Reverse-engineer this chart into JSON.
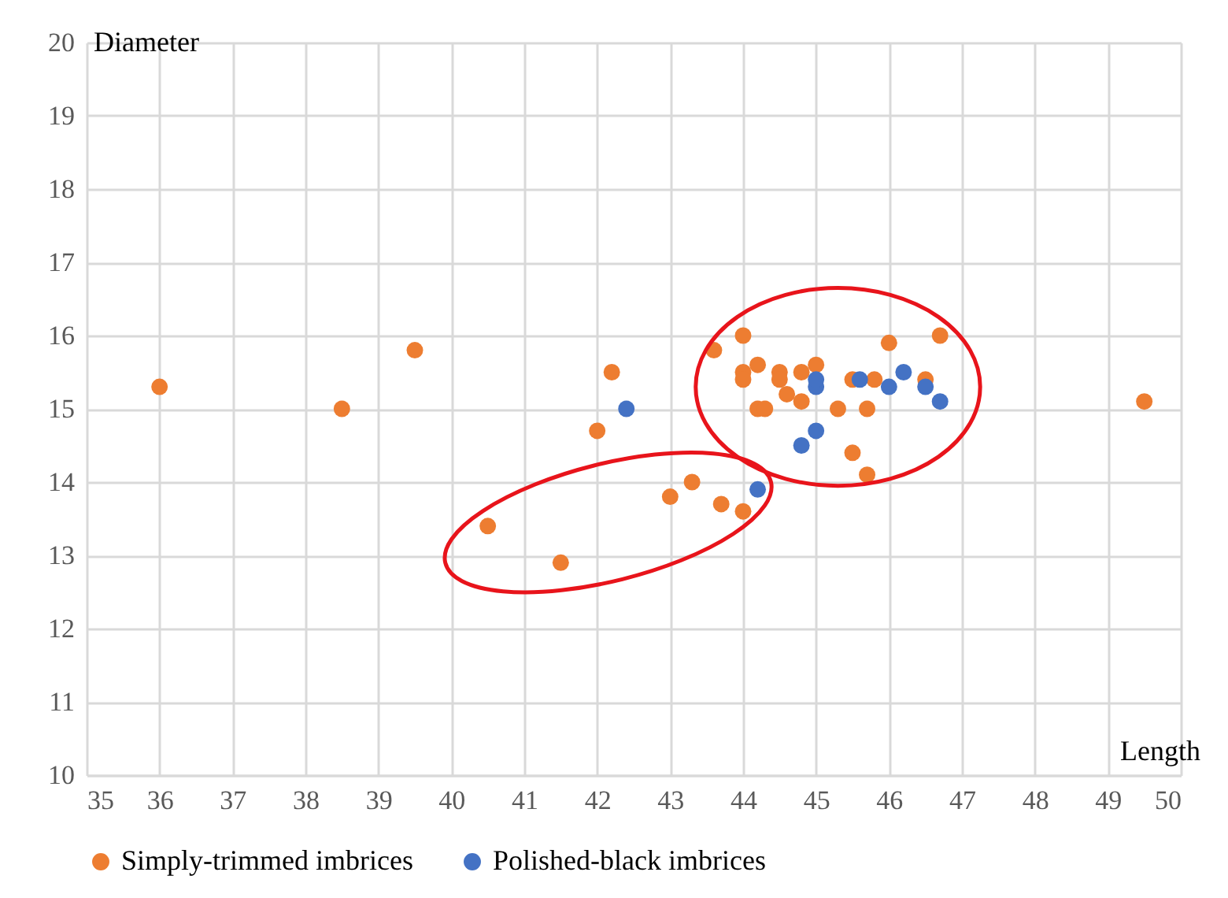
{
  "chart_data": {
    "type": "scatter",
    "xlabel": "Length",
    "ylabel": "Diameter",
    "xlim": [
      35,
      50
    ],
    "xticks": [
      35,
      36,
      37,
      38,
      39,
      40,
      41,
      42,
      43,
      44,
      45,
      46,
      47,
      48,
      49,
      50
    ],
    "ylim": [
      10,
      20
    ],
    "yticks": [
      10,
      11,
      12,
      13,
      14,
      15,
      16,
      17,
      18,
      19,
      20
    ],
    "grid": true,
    "legend": "bottom",
    "marker": "circle",
    "series": [
      {
        "name": "Simply-trimmed imbrices",
        "color": "#ed7d31",
        "x": [
          36,
          38.5,
          39.5,
          40.5,
          41.5,
          42,
          42.2,
          43,
          43.3,
          43.7,
          43.6,
          44,
          44,
          44,
          44,
          44.2,
          44.3,
          44.2,
          44.5,
          44.5,
          44.6,
          44.8,
          44.8,
          45,
          45.3,
          45.5,
          45.5,
          45.7,
          45.7,
          45.8,
          46,
          46.5,
          46.7,
          49.5
        ],
        "values": [
          15.3,
          15.0,
          15.8,
          13.4,
          12.9,
          14.7,
          15.5,
          13.8,
          14.0,
          13.7,
          15.8,
          13.6,
          16.0,
          15.5,
          15.4,
          15.0,
          15.0,
          15.6,
          15.5,
          15.4,
          15.2,
          15.1,
          15.5,
          15.6,
          15.0,
          15.4,
          14.4,
          15.0,
          14.1,
          15.4,
          15.9,
          15.4,
          16.0,
          15.1
        ]
      },
      {
        "name": "Polished-black imbrices",
        "color": "#4472c4",
        "x": [
          42.4,
          44.2,
          44.8,
          45,
          45,
          45,
          45.6,
          46,
          46.2,
          46.5,
          46.7
        ],
        "values": [
          15.0,
          13.9,
          14.5,
          14.7,
          15.3,
          15.4,
          15.4,
          15.3,
          15.5,
          15.3,
          15.1
        ]
      }
    ]
  }
}
